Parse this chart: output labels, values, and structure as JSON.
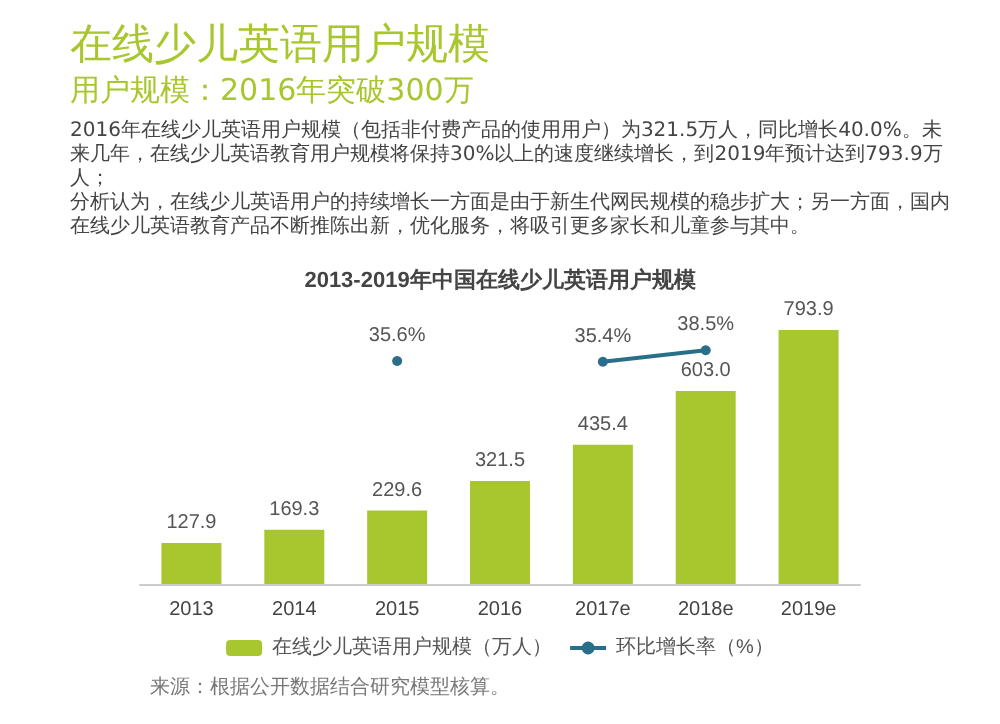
{
  "chart_data": {
    "type": "bar",
    "title": "在线少儿英语用户规模",
    "subtitle": "用户规模：2016年突破300万",
    "annotations": [
      "2016年在线少儿英语用户规模（包括非付费产品的使用用户）为321.5万人，同比增长40.0%。未来几年，在线少儿英语教育用户规模将保持30%以上的速度继续增长，到2019年预计达到793.9万人；",
      "分析认为，在线少儿英语用户的持续增长一方面是由于新生代网民规模的稳步扩大；另一方面，国内在线少儿英语教育产品不断推陈出新，优化服务，将吸引更多家长和儿童参与其中。",
      "2013-2019年中国在线少儿英语用户规模",
      "来源：根据公开数据结合研究模型核算。"
    ],
    "categories": [
      "2013",
      "2014",
      "2015",
      "2016",
      "2017e",
      "2018e",
      "2019e"
    ],
    "series": [
      {
        "name": "在线少儿英语用户规模（万人）",
        "color": "#a8c72e",
        "values": [
          127.9,
          169.3,
          229.6,
          321.5,
          435.4,
          603.0,
          793.9
        ],
        "value_labels": [
          "127.9",
          "169.3",
          "229.6",
          "321.5",
          "435.4",
          "603.0",
          "793.9"
        ]
      },
      {
        "name": "环比增长率（%）",
        "type": "line",
        "axis": "y2",
        "color": "#2a6f8a",
        "values": [
          null,
          null,
          35.6,
          null,
          35.4,
          38.5,
          null
        ],
        "value_labels": [
          null,
          null,
          "35.6%",
          null,
          "35.4%",
          "38.5%",
          null
        ]
      }
    ],
    "marker": "circle",
    "legend": "bottom"
  }
}
